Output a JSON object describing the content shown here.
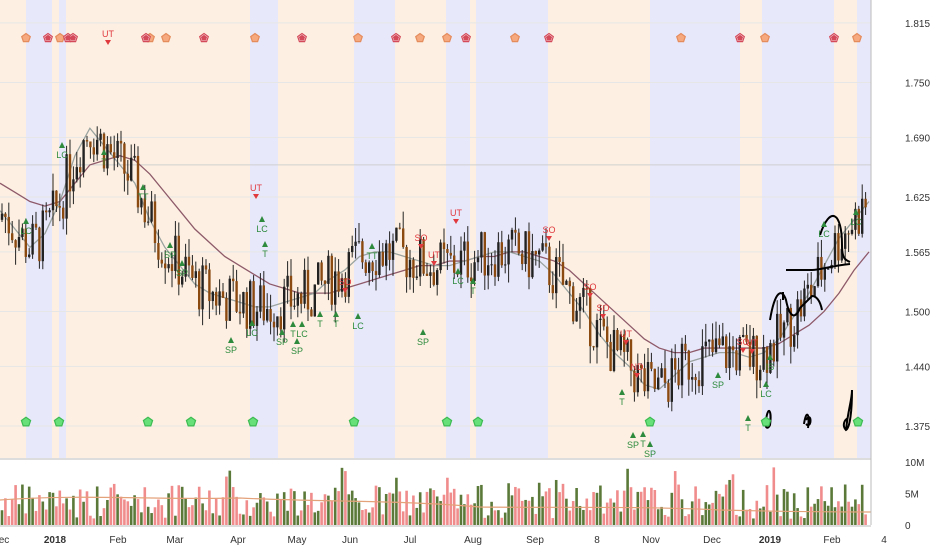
{
  "chart_data": {
    "type": "candlestick",
    "price_axis": {
      "ticks": [
        1.815,
        1.75,
        1.69,
        1.625,
        1.565,
        1.5,
        1.44,
        1.375
      ],
      "ylim": [
        1.34,
        1.84
      ]
    },
    "volume_axis": {
      "ticks": [
        "10M",
        "5M",
        "0"
      ],
      "ylim": [
        0,
        10
      ]
    },
    "x_axis": {
      "ticks": [
        "ec",
        "2018",
        "Feb",
        "Mar",
        "Apr",
        "May",
        "Jun",
        "Jul",
        "Aug",
        "Sep",
        "8",
        "Nov",
        "Dec",
        "2019",
        "Feb",
        "4"
      ]
    },
    "moving_averages": {
      "fast": [
        1.61,
        1.59,
        1.57,
        1.585,
        1.62,
        1.67,
        1.7,
        1.68,
        1.66,
        1.64,
        1.6,
        1.57,
        1.55,
        1.53,
        1.52,
        1.515,
        1.51,
        1.505,
        1.505,
        1.51,
        1.515,
        1.52,
        1.535,
        1.545,
        1.56,
        1.565,
        1.565,
        1.56,
        1.555,
        1.55,
        1.55,
        1.555,
        1.56,
        1.565,
        1.565,
        1.56,
        1.555,
        1.54,
        1.52,
        1.5,
        1.475,
        1.455,
        1.44,
        1.42,
        1.415,
        1.43,
        1.445,
        1.45,
        1.455,
        1.455,
        1.45,
        1.455,
        1.47,
        1.495,
        1.52,
        1.55,
        1.58,
        1.6,
        1.62
      ],
      "slow": [
        1.64,
        1.63,
        1.62,
        1.615,
        1.62,
        1.64,
        1.66,
        1.665,
        1.67,
        1.665,
        1.65,
        1.63,
        1.61,
        1.59,
        1.575,
        1.56,
        1.55,
        1.54,
        1.53,
        1.525,
        1.52,
        1.52,
        1.52,
        1.525,
        1.53,
        1.535,
        1.54,
        1.545,
        1.55,
        1.55,
        1.555,
        1.555,
        1.56,
        1.56,
        1.565,
        1.565,
        1.56,
        1.555,
        1.545,
        1.53,
        1.515,
        1.5,
        1.485,
        1.47,
        1.46,
        1.455,
        1.455,
        1.46,
        1.46,
        1.46,
        1.46,
        1.46,
        1.465,
        1.475,
        1.485,
        1.5,
        1.52,
        1.545,
        1.565
      ]
    },
    "background_bands": {
      "blue": [
        [
          26,
          52
        ],
        [
          59,
          66
        ],
        [
          250,
          278
        ],
        [
          354,
          395
        ],
        [
          446,
          470
        ],
        [
          476,
          548
        ],
        [
          650,
          740
        ],
        [
          762,
          834
        ],
        [
          857,
          871
        ]
      ],
      "peach": [
        [
          0,
          26
        ],
        [
          52,
          59
        ],
        [
          66,
          250
        ],
        [
          278,
          354
        ],
        [
          395,
          446
        ],
        [
          470,
          476
        ],
        [
          548,
          650
        ],
        [
          740,
          762
        ],
        [
          834,
          857
        ]
      ]
    },
    "top_markers": {
      "peach": [
        26,
        60,
        150,
        166,
        255,
        358,
        420,
        447,
        515,
        681,
        765,
        857
      ],
      "red": [
        48,
        68,
        73,
        146,
        204,
        302,
        396,
        466,
        549,
        740,
        834
      ]
    },
    "bottom_markers": [
      26,
      59,
      148,
      191,
      253,
      354,
      447,
      478,
      650,
      766,
      858
    ],
    "annotations": [
      {
        "text": "UT",
        "x": 108,
        "y": 37,
        "color": "red"
      },
      {
        "text": "T",
        "x": 104,
        "y": 165,
        "color": "green"
      },
      {
        "text": "LC",
        "x": 62,
        "y": 158,
        "color": "green"
      },
      {
        "text": "LC",
        "x": 26,
        "y": 234,
        "color": "green"
      },
      {
        "text": "TT",
        "x": 143,
        "y": 200,
        "color": "green"
      },
      {
        "text": "SP",
        "x": 170,
        "y": 258,
        "color": "green"
      },
      {
        "text": "SP",
        "x": 182,
        "y": 276,
        "color": "green"
      },
      {
        "text": "SP",
        "x": 231,
        "y": 353,
        "color": "green"
      },
      {
        "text": "LC",
        "x": 252,
        "y": 336,
        "color": "green"
      },
      {
        "text": "UT",
        "x": 256,
        "y": 191,
        "color": "red"
      },
      {
        "text": "LC",
        "x": 262,
        "y": 232,
        "color": "green"
      },
      {
        "text": "T",
        "x": 265,
        "y": 257,
        "color": "green"
      },
      {
        "text": "SP",
        "x": 282,
        "y": 345,
        "color": "green"
      },
      {
        "text": "T",
        "x": 293,
        "y": 337,
        "color": "green"
      },
      {
        "text": "SP",
        "x": 297,
        "y": 354,
        "color": "green"
      },
      {
        "text": "LC",
        "x": 302,
        "y": 337,
        "color": "green"
      },
      {
        "text": "T",
        "x": 320,
        "y": 327,
        "color": "green"
      },
      {
        "text": "T",
        "x": 336,
        "y": 327,
        "color": "green"
      },
      {
        "text": "SO",
        "x": 345,
        "y": 285,
        "color": "red"
      },
      {
        "text": "LC",
        "x": 358,
        "y": 329,
        "color": "green"
      },
      {
        "text": "TT",
        "x": 372,
        "y": 259,
        "color": "green"
      },
      {
        "text": "SO",
        "x": 421,
        "y": 241,
        "color": "red"
      },
      {
        "text": "UT",
        "x": 434,
        "y": 258,
        "color": "red"
      },
      {
        "text": "UT",
        "x": 456,
        "y": 216,
        "color": "red"
      },
      {
        "text": "LC",
        "x": 458,
        "y": 284,
        "color": "green"
      },
      {
        "text": "SP",
        "x": 423,
        "y": 345,
        "color": "green"
      },
      {
        "text": "T",
        "x": 473,
        "y": 294,
        "color": "green"
      },
      {
        "text": "SO",
        "x": 549,
        "y": 233,
        "color": "red"
      },
      {
        "text": "SO",
        "x": 590,
        "y": 290,
        "color": "red"
      },
      {
        "text": "SO",
        "x": 603,
        "y": 311,
        "color": "red"
      },
      {
        "text": "UT",
        "x": 626,
        "y": 337,
        "color": "red"
      },
      {
        "text": "ND",
        "x": 637,
        "y": 370,
        "color": "red"
      },
      {
        "text": "T",
        "x": 622,
        "y": 405,
        "color": "green"
      },
      {
        "text": "SP",
        "x": 633,
        "y": 448,
        "color": "green"
      },
      {
        "text": "T",
        "x": 643,
        "y": 447,
        "color": "green"
      },
      {
        "text": "SP",
        "x": 650,
        "y": 457,
        "color": "green"
      },
      {
        "text": "SP",
        "x": 718,
        "y": 388,
        "color": "green"
      },
      {
        "text": "SO",
        "x": 743,
        "y": 345,
        "color": "red"
      },
      {
        "text": "UT",
        "x": 752,
        "y": 346,
        "color": "red"
      },
      {
        "text": "T",
        "x": 748,
        "y": 431,
        "color": "green"
      },
      {
        "text": "LC",
        "x": 766,
        "y": 397,
        "color": "green"
      },
      {
        "text": "IS",
        "x": 770,
        "y": 370,
        "color": "green"
      },
      {
        "text": "LC",
        "x": 824,
        "y": 237,
        "color": "green"
      },
      {
        "text": "LC",
        "x": 856,
        "y": 225,
        "color": "green"
      }
    ]
  }
}
